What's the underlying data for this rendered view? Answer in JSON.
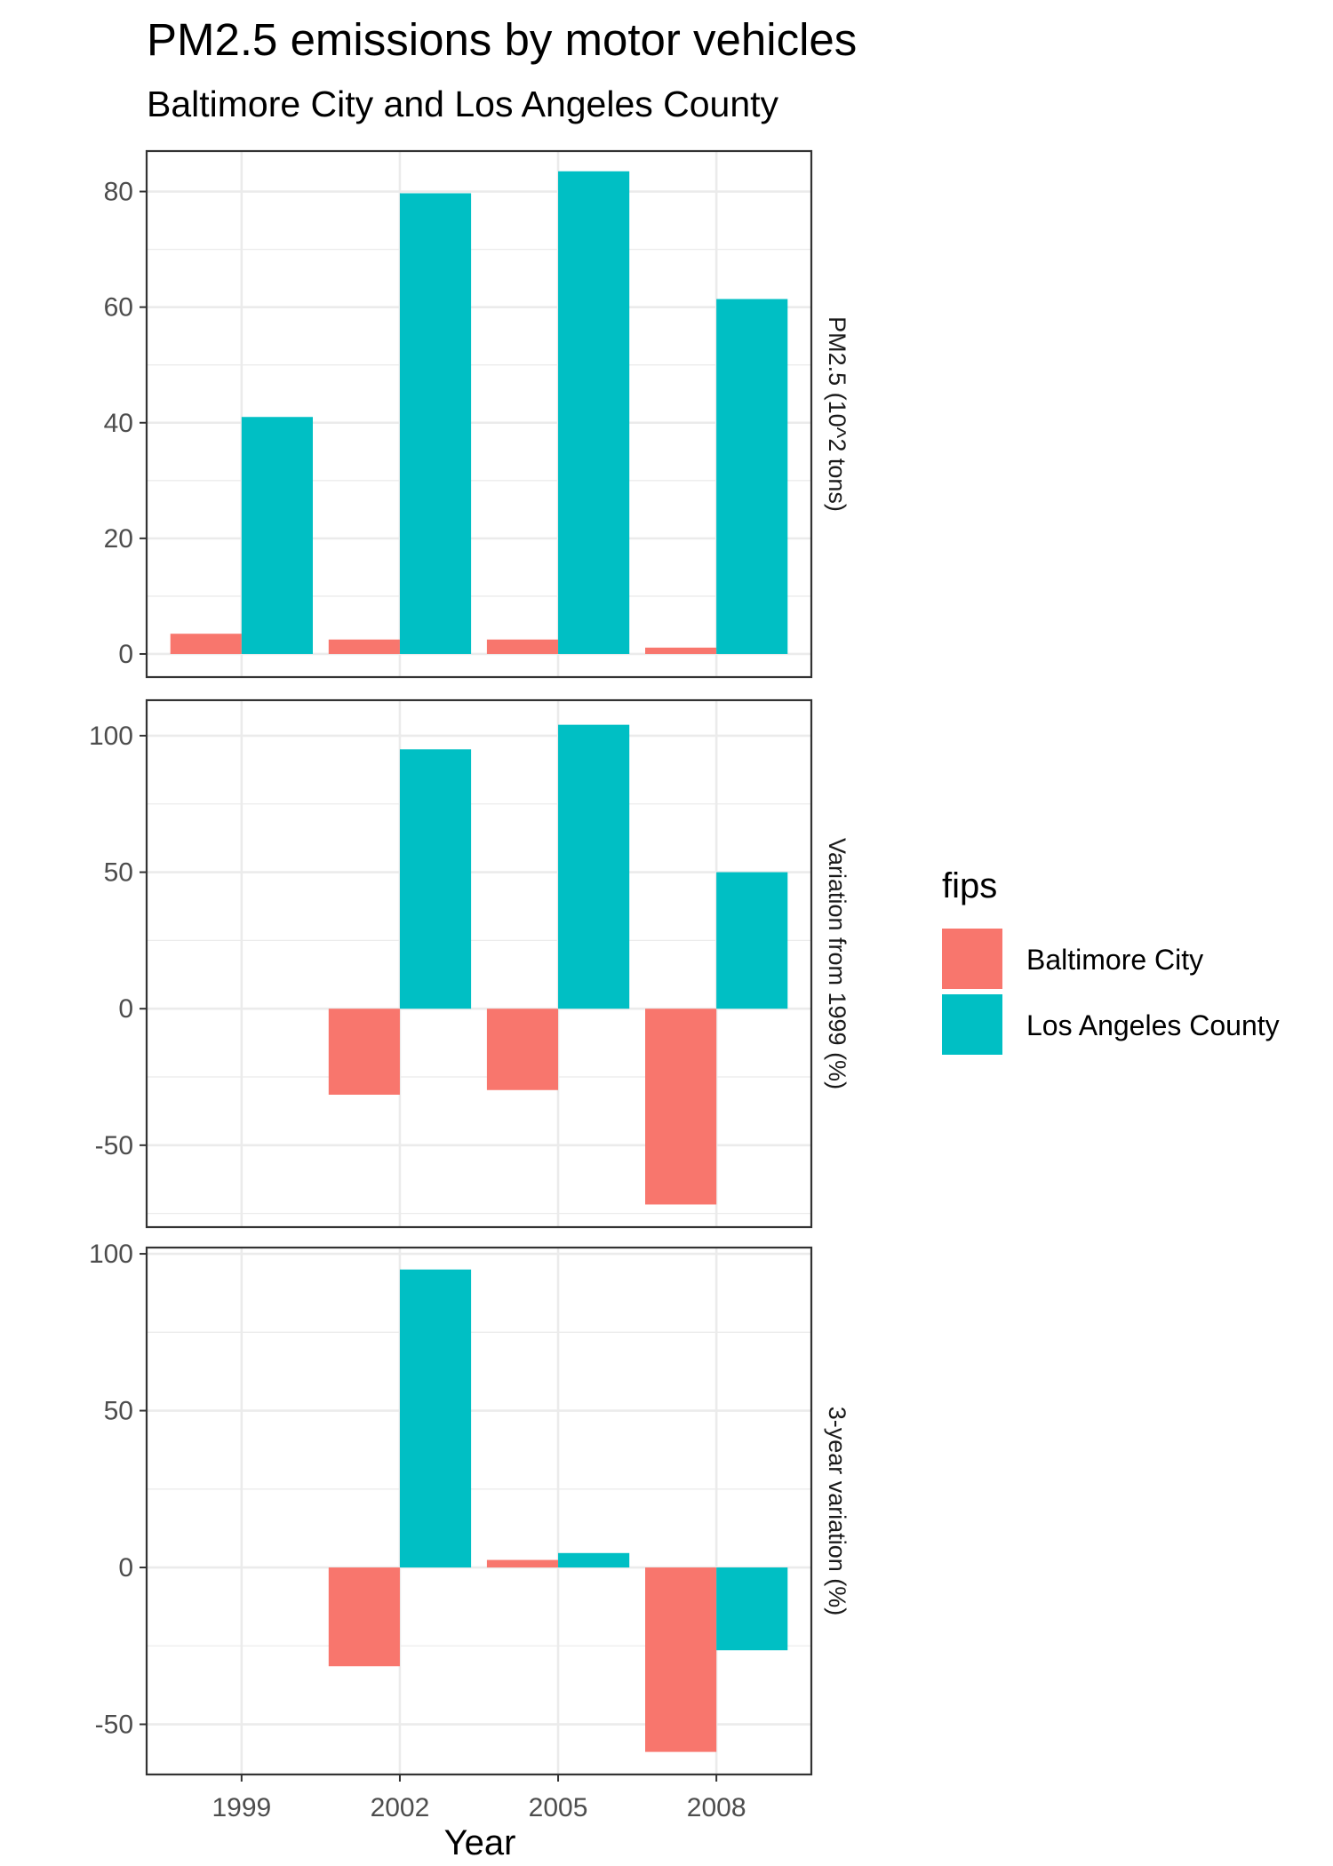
{
  "chart_data": {
    "type": "bar",
    "title": "PM2.5 emissions by motor vehicles",
    "subtitle": "Baltimore City and Los Angeles County",
    "xlabel": "Year",
    "categories": [
      "1999",
      "2002",
      "2005",
      "2008"
    ],
    "legend": {
      "title": "fips",
      "placement": "right",
      "entries": [
        {
          "name": "Baltimore City",
          "color": "#F8766D"
        },
        {
          "name": "Los Angeles County",
          "color": "#00BFC4"
        }
      ]
    },
    "grid": true,
    "panels": [
      {
        "strip_label": "PM2.5 (10^2 tons)",
        "ylim": [
          -4,
          87
        ],
        "yticks": [
          0,
          20,
          40,
          60,
          80
        ],
        "series": [
          {
            "name": "Baltimore City",
            "values": [
              3.5,
              2.5,
              2.5,
              1.1
            ]
          },
          {
            "name": "Los Angeles County",
            "values": [
              41,
              79.7,
              83.5,
              61.4
            ]
          }
        ]
      },
      {
        "strip_label": "Variation from 1999 (%)",
        "ylim": [
          -80,
          113
        ],
        "yticks": [
          -50,
          0,
          50,
          100
        ],
        "series": [
          {
            "name": "Baltimore City",
            "values": [
              0,
              -31.5,
              -29.8,
              -71.7
            ]
          },
          {
            "name": "Los Angeles County",
            "values": [
              0,
              95,
              104,
              50
            ]
          }
        ]
      },
      {
        "strip_label": "3-year variation (%)",
        "ylim": [
          -66,
          102
        ],
        "yticks": [
          -50,
          0,
          50,
          100
        ],
        "series": [
          {
            "name": "Baltimore City",
            "values": [
              0,
              -31.5,
              2.4,
              -58.8
            ]
          },
          {
            "name": "Los Angeles County",
            "values": [
              0,
              95,
              4.6,
              -26.4
            ]
          }
        ]
      }
    ]
  }
}
